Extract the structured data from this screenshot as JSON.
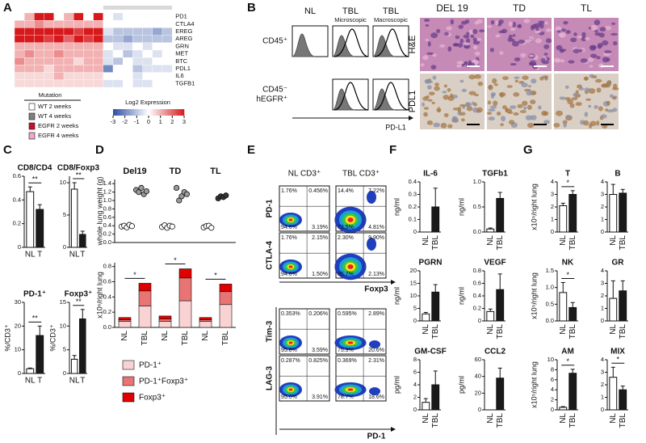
{
  "panel_labels": [
    "A",
    "B",
    "C",
    "D",
    "E",
    "F",
    "G"
  ],
  "bar_colors": [
    "#ffffff",
    "#1a1a1a"
  ],
  "heatmap": {
    "rows": [
      "PD1",
      "CTLA4",
      "EREG",
      "AREG",
      "GRN",
      "MET",
      "BTC",
      "PDL1",
      "IL6",
      "TGFB1"
    ],
    "values": [
      [
        0,
        1,
        3,
        3,
        0,
        1,
        3,
        0,
        3,
        0,
        -0.5,
        0,
        0,
        0,
        0,
        0
      ],
      [
        1,
        1,
        1.5,
        1,
        1,
        1,
        1,
        1,
        1,
        0,
        0,
        0,
        0,
        0,
        0,
        0
      ],
      [
        3,
        3,
        3,
        3,
        3,
        3,
        2.5,
        3,
        3,
        -0.5,
        -1,
        -1,
        -1,
        -1,
        -1.5,
        -1
      ],
      [
        3,
        3,
        3,
        2.5,
        3,
        2,
        3,
        2.5,
        3,
        -1,
        -1,
        -1.5,
        -1,
        -1,
        -1,
        -1
      ],
      [
        1,
        1,
        1,
        1,
        1,
        1,
        1,
        1,
        1,
        0,
        -0.5,
        -0.5,
        0,
        -0.5,
        0,
        0
      ],
      [
        1,
        1.5,
        1,
        1,
        1.5,
        1,
        1,
        1,
        1,
        -0.5,
        0,
        -1,
        -0.5,
        0,
        -0.5,
        0
      ],
      [
        1.5,
        1,
        1,
        1,
        1,
        1,
        0.5,
        1,
        1,
        -0.5,
        -1,
        0,
        -0.5,
        -0.5,
        0,
        0
      ],
      [
        1,
        1,
        1,
        0.5,
        1,
        1,
        1,
        1,
        1,
        -2,
        0,
        0,
        -1,
        -0.5,
        -0.5,
        -0.5
      ],
      [
        0.5,
        0.5,
        0.5,
        0.5,
        1,
        0.5,
        0.5,
        0.5,
        0.5,
        0,
        0,
        0,
        -0.5,
        0,
        0,
        0
      ],
      [
        0.5,
        0.5,
        0.5,
        0.5,
        0.5,
        0.5,
        0.5,
        0.5,
        0.5,
        -0.5,
        -0.5,
        0,
        -0.5,
        -0.5,
        0,
        0
      ]
    ],
    "clim": [
      -3,
      3
    ],
    "low_color": "#2c4fa3",
    "mid_color": "#ffffff",
    "high_color": "#d7191c",
    "colorbar_title": "Log2 Expression",
    "colorbar_ticks": [
      -3,
      -2,
      -1,
      0,
      1,
      2,
      3
    ],
    "legend_title": "Mutation",
    "legend": [
      {
        "name": "WT 2 weeks",
        "color": "#ffffff"
      },
      {
        "name": "WT 4 weeks",
        "color": "#808080"
      },
      {
        "name": "EGFR 2 weeks",
        "color": "#c8102e"
      },
      {
        "name": "EGFR 4 weeks",
        "color": "#f2a7c9"
      }
    ]
  },
  "flow_hist": {
    "columns": [
      {
        "label": "NL",
        "color": "#111111"
      },
      {
        "label": "TBL",
        "sub": "Microscopic",
        "color": "#3aa63a"
      },
      {
        "label": "TBL",
        "sub": "Macroscopic",
        "color": "#e0202a"
      }
    ],
    "rows": [
      [
        "CD45⁺"
      ],
      [
        "CD45⁻",
        "hEGFR⁺"
      ]
    ],
    "xlabel": "PD-L1"
  },
  "histology": {
    "columns": [
      "DEL 19",
      "TD",
      "TL"
    ],
    "rows": [
      "H&E",
      "PDL1"
    ]
  },
  "C": {
    "charts": [
      {
        "title": "CD8/CD4",
        "categories": [
          "NL",
          "T"
        ],
        "values": [
          0.47,
          0.32
        ],
        "errors": [
          0.04,
          0.04
        ],
        "ylim": [
          0,
          0.6
        ],
        "yticks": [
          0,
          0.2,
          0.4,
          0.6
        ],
        "sig": "**"
      },
      {
        "title": "CD8/Foxp3",
        "categories": [
          "NL",
          "T"
        ],
        "values": [
          9,
          2
        ],
        "errors": [
          1,
          0.5
        ],
        "ylim": [
          0,
          11
        ],
        "yticks": [
          0,
          5,
          10
        ],
        "sig": "**"
      },
      {
        "title": "PD-1⁺",
        "ylabel": "%/CD3⁺",
        "categories": [
          "NL",
          "T"
        ],
        "values": [
          2,
          16
        ],
        "errors": [
          0.3,
          4
        ],
        "ylim": [
          0,
          30
        ],
        "yticks": [
          0,
          10,
          20,
          30
        ],
        "sig": "**"
      },
      {
        "title": "Foxp3⁺",
        "ylabel": "%/CD3⁺",
        "categories": [
          "NL",
          "T"
        ],
        "values": [
          3,
          11.5
        ],
        "errors": [
          0.8,
          2
        ],
        "ylim": [
          0,
          15
        ],
        "yticks": [
          0,
          5,
          10,
          15
        ],
        "sig": "**"
      }
    ]
  },
  "D": {
    "weight": {
      "ylabel": "whole lung weight (g)",
      "ylim": [
        0,
        1.5
      ],
      "yticks": [
        {
          "value": 0,
          "label": "0.0"
        },
        0.2,
        0.4,
        0.6,
        0.8,
        {
          "value": 1,
          "label": "1.0"
        },
        1.2,
        1.4
      ],
      "groups": [
        {
          "name": "Del19",
          "nl": [
            0.38,
            0.4,
            0.36,
            0.42,
            0.39
          ],
          "tbl": [
            1.25,
            1.2,
            1.3,
            1.15,
            1.22
          ],
          "color": "#9a9a9a"
        },
        {
          "name": "TD",
          "nl": [
            0.37,
            0.41,
            0.35,
            0.4,
            0.38
          ],
          "tbl": [
            1.3,
            1.0,
            1.1,
            1.2,
            1.15
          ],
          "color": "#9a9a9a"
        },
        {
          "name": "TL",
          "nl": [
            0.36,
            0.39,
            0.4,
            0.35
          ],
          "tbl": [
            1.05,
            1.1,
            1.08,
            1.12
          ],
          "color": "#333333"
        }
      ]
    },
    "bars": {
      "ylabel": "x10⁶/right lung",
      "ylim": [
        0,
        0.85
      ],
      "yticks": [
        {
          "value": 0,
          "label": "0.0"
        },
        0.2,
        0.4,
        0.6,
        0.8
      ],
      "categories": [
        "NL",
        "TBL",
        "NL",
        "TBL",
        "NL",
        "TBL"
      ],
      "series": [
        {
          "name": "PD-1⁺",
          "color": "#f9d3d3",
          "values": [
            0.08,
            0.28,
            0.08,
            0.35,
            0.08,
            0.3
          ]
        },
        {
          "name": "PD-1⁺Foxp3⁺",
          "color": "#e87474",
          "values": [
            0.02,
            0.2,
            0.03,
            0.3,
            0.02,
            0.17
          ]
        },
        {
          "name": "Foxp3⁺",
          "color": "#e00000",
          "values": [
            0.03,
            0.1,
            0.04,
            0.12,
            0.03,
            0.1
          ]
        }
      ],
      "sig": [
        "*",
        "*",
        "*"
      ]
    }
  },
  "E": {
    "columns": [
      "NL CD3⁺",
      "TBL CD3⁺"
    ],
    "rows": [
      {
        "label": "PD-1",
        "plots": [
          [
            "1.76%",
            "0.456%",
            "94.6%",
            "3.19%"
          ],
          [
            "14.4%",
            "7.22%",
            "73.5%",
            "4.81%"
          ]
        ]
      },
      {
        "label": "CTLA-4",
        "plots": [
          [
            "1.76%",
            "2.15%",
            "94.6%",
            "1.50%"
          ],
          [
            "2.30%",
            "9.90%",
            "85.7%",
            "2.13%"
          ]
        ]
      },
      {
        "label": "Tim-3",
        "plots": [
          [
            "0.353%",
            "0.206%",
            "95.8%",
            "3.59%"
          ],
          [
            "0.595%",
            "2.89%",
            "75.9%",
            "20.6%"
          ]
        ]
      },
      {
        "label": "LAG-3",
        "plots": [
          [
            "0.287%",
            "0.825%",
            "95.0%",
            "3.91%"
          ],
          [
            "0.369%",
            "2.31%",
            "78.7%",
            "18.6%"
          ]
        ]
      }
    ],
    "xlabels": [
      "Foxp3",
      "PD-1"
    ]
  },
  "F": {
    "charts": [
      {
        "title": "IL-6",
        "ylabel": "ng/ml",
        "categories": [
          "NL",
          "TBL"
        ],
        "values": [
          0,
          0.2
        ],
        "errors": [
          0,
          0.15
        ],
        "ylim": [
          0,
          0.4
        ],
        "yticks": [
          0,
          0.1,
          0.2,
          0.3,
          0.4
        ]
      },
      {
        "title": "TGFb1",
        "ylabel": "ng/ml",
        "categories": [
          "NL",
          "TBL"
        ],
        "values": [
          0.06,
          0.67
        ],
        "errors": [
          0.02,
          0.12
        ],
        "ylim": [
          0,
          1
        ],
        "yticks": [
          {
            "value": 0,
            "label": "0.0"
          },
          0.5,
          {
            "value": 1,
            "label": "1.0"
          }
        ]
      },
      {
        "title": "PGRN",
        "ylabel": "ng/ml",
        "categories": [
          "NL",
          "TBL"
        ],
        "values": [
          2.8,
          11.5
        ],
        "errors": [
          0.6,
          3
        ],
        "ylim": [
          0,
          20
        ],
        "yticks": [
          0,
          5,
          10,
          15,
          20
        ]
      },
      {
        "title": "VEGF",
        "ylabel": "ng/ml",
        "categories": [
          "NL",
          "TBL"
        ],
        "values": [
          0.15,
          0.5
        ],
        "errors": [
          0.04,
          0.25
        ],
        "ylim": [
          0,
          0.8
        ],
        "yticks": [
          0,
          0.2,
          0.4,
          0.6,
          0.8
        ]
      },
      {
        "title": "GM-CSF",
        "ylabel": "pg/ml",
        "categories": [
          "NL",
          "TBL"
        ],
        "values": [
          1.2,
          4
        ],
        "errors": [
          0.6,
          2.2
        ],
        "ylim": [
          0,
          8
        ],
        "yticks": [
          0,
          2,
          4,
          6,
          8
        ]
      },
      {
        "title": "CCL2",
        "ylabel": "pg/ml",
        "categories": [
          "NL",
          "TBL"
        ],
        "values": [
          0,
          38
        ],
        "errors": [
          0,
          12
        ],
        "ylim": [
          0,
          60
        ],
        "yticks": [
          0,
          20,
          40,
          60
        ]
      }
    ]
  },
  "G": {
    "charts": [
      {
        "title": "T",
        "ylabel": "x10⁵/right lung",
        "categories": [
          "NL",
          "TBL"
        ],
        "values": [
          2.1,
          3.0
        ],
        "errors": [
          0.2,
          0.3
        ],
        "ylim": [
          0,
          4
        ],
        "yticks": [
          0,
          1,
          2,
          3,
          4
        ],
        "sig": "*"
      },
      {
        "title": "B",
        "categories": [
          "NL",
          "TBL"
        ],
        "values": [
          3,
          3.1
        ],
        "errors": [
          0.8,
          0.3
        ],
        "ylim": [
          0,
          4
        ],
        "yticks": [
          0,
          1,
          2,
          3,
          4
        ]
      },
      {
        "title": "NK",
        "ylabel": "x10⁵/right lung",
        "categories": [
          "NL",
          "TBL"
        ],
        "values": [
          0.85,
          0.4
        ],
        "errors": [
          0.3,
          0.15
        ],
        "ylim": [
          0,
          1.5
        ],
        "yticks": [
          {
            "value": 0,
            "label": "0.0"
          },
          0.5,
          {
            "value": 1,
            "label": "1.0"
          },
          1.5
        ],
        "sig": "*"
      },
      {
        "title": "GR",
        "categories": [
          "NL",
          "TBL"
        ],
        "values": [
          1.8,
          2.4
        ],
        "errors": [
          1.4,
          0.8
        ],
        "ylim": [
          0,
          4
        ],
        "yticks": [
          0,
          1,
          2,
          3,
          4
        ]
      },
      {
        "title": "AM",
        "ylabel": "x10⁵/right lung",
        "categories": [
          "NL",
          "TBL"
        ],
        "values": [
          0.5,
          7.3
        ],
        "errors": [
          0.15,
          0.8
        ],
        "ylim": [
          0,
          10
        ],
        "yticks": [
          0,
          2,
          4,
          6,
          8,
          10
        ],
        "sig": "*"
      },
      {
        "title": "MIX",
        "categories": [
          "NL",
          "TBL"
        ],
        "values": [
          2.6,
          1.6
        ],
        "errors": [
          0.8,
          0.3
        ],
        "ylim": [
          0,
          4
        ],
        "yticks": [
          0,
          1,
          2,
          3,
          4
        ],
        "sig": "*"
      }
    ]
  }
}
